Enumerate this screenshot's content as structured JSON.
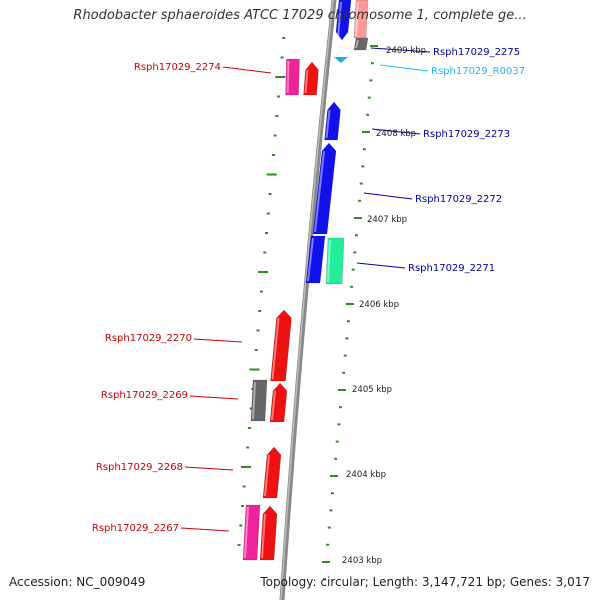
{
  "title": "Rhodobacter sphaeroides ATCC 17029 chromosome 1, complete ge...",
  "footer": {
    "accession": "Accession: NC_009049",
    "summary": "Topology: circular; Length: 3,147,721 bp; Genes: 3,017"
  },
  "colors": {
    "backbone": "#888888",
    "tick_marks": "#2e8b22",
    "reverse_label": "#cc0000",
    "forward_label": "#0000aa",
    "rna_label": "#22bbee",
    "gene_red": "#ee1111",
    "gene_blue": "#1111ee",
    "gene_pink": "#ee2299",
    "gene_gray": "#666666",
    "gene_green": "#22ee99"
  },
  "position_markers": [
    "2409 kbp",
    "2408 kbp",
    "2407 kbp",
    "2406 kbp",
    "2405 kbp",
    "2404 kbp",
    "2403 kbp"
  ],
  "genes": [
    {
      "id": "Rsph17029_2275",
      "strand": "forward",
      "color": "blue"
    },
    {
      "id": "Rsph17029_R0037",
      "strand": "forward",
      "color": "rna"
    },
    {
      "id": "Rsph17029_2274",
      "strand": "reverse",
      "color": "red"
    },
    {
      "id": "Rsph17029_2273",
      "strand": "forward",
      "color": "blue"
    },
    {
      "id": "Rsph17029_2272",
      "strand": "forward",
      "color": "blue"
    },
    {
      "id": "Rsph17029_2271",
      "strand": "forward",
      "color": "blue"
    },
    {
      "id": "Rsph17029_2270",
      "strand": "reverse",
      "color": "red"
    },
    {
      "id": "Rsph17029_2269",
      "strand": "reverse",
      "color": "red"
    },
    {
      "id": "Rsph17029_2268",
      "strand": "reverse",
      "color": "red"
    },
    {
      "id": "Rsph17029_2267",
      "strand": "reverse",
      "color": "red"
    }
  ]
}
